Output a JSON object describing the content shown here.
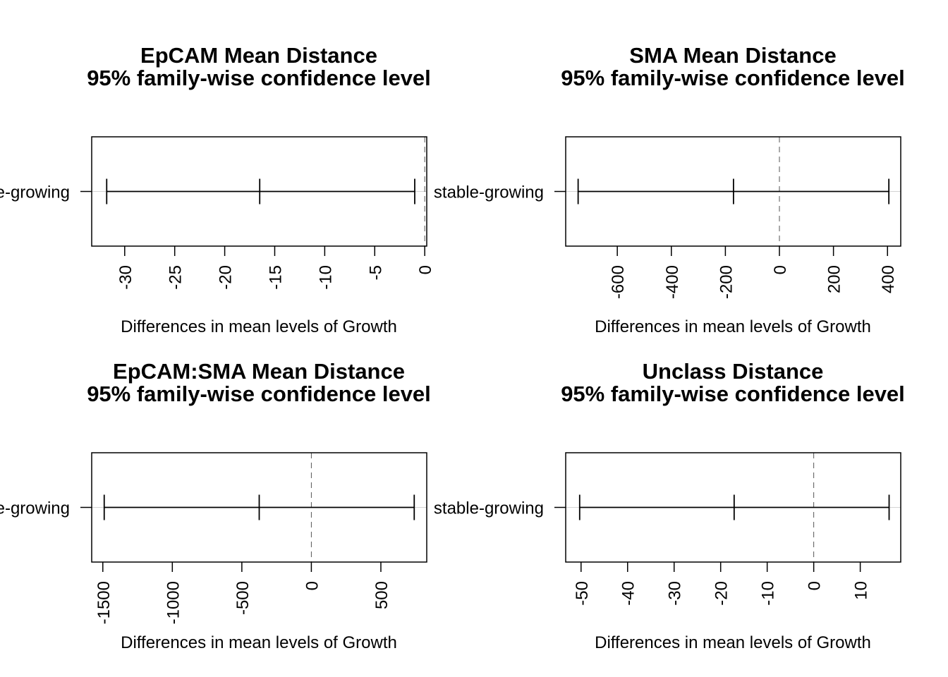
{
  "chart_data": [
    {
      "type": "interval",
      "title_lines": [
        "EpCAM Mean Distance",
        "95% family-wise confidence level"
      ],
      "xlabel": "Differences in mean levels of Growth",
      "comparisons": [
        {
          "label": "stable-growing",
          "lwr": -31.8,
          "diff": -16.5,
          "upr": -1.0
        }
      ],
      "xticks": [
        -30,
        -25,
        -20,
        -15,
        -10,
        -5,
        0
      ],
      "xlim": [
        -33.3,
        0.2
      ],
      "reference_line": 0,
      "grid": false
    },
    {
      "type": "interval",
      "title_lines": [
        "SMA Mean Distance",
        "95% family-wise confidence level"
      ],
      "xlabel": "Differences in mean levels of Growth",
      "comparisons": [
        {
          "label": "stable-growing",
          "lwr": -745,
          "diff": -170,
          "upr": 405
        }
      ],
      "xticks": [
        -600,
        -400,
        -200,
        0,
        200,
        400
      ],
      "xlim": [
        -791,
        449
      ],
      "reference_line": 0,
      "grid": false
    },
    {
      "type": "interval",
      "title_lines": [
        "EpCAM:SMA Mean Distance",
        "95% family-wise confidence level"
      ],
      "xlabel": "Differences in mean levels of Growth",
      "comparisons": [
        {
          "label": "stable-growing",
          "lwr": -1490,
          "diff": -375,
          "upr": 740
        }
      ],
      "xticks": [
        -1500,
        -1000,
        -500,
        0,
        500
      ],
      "xlim": [
        -1580,
        830
      ],
      "reference_line": 0,
      "grid": false
    },
    {
      "type": "interval",
      "title_lines": [
        "Unclass Distance",
        "95% family-wise confidence level"
      ],
      "xlabel": "Differences in mean levels of Growth",
      "comparisons": [
        {
          "label": "stable-growing",
          "lwr": -50.3,
          "diff": -17.1,
          "upr": 16.2
        }
      ],
      "xticks": [
        -50,
        -40,
        -30,
        -20,
        -10,
        0,
        10
      ],
      "xlim": [
        -53.3,
        18.7
      ],
      "reference_line": 0,
      "grid": false
    }
  ]
}
